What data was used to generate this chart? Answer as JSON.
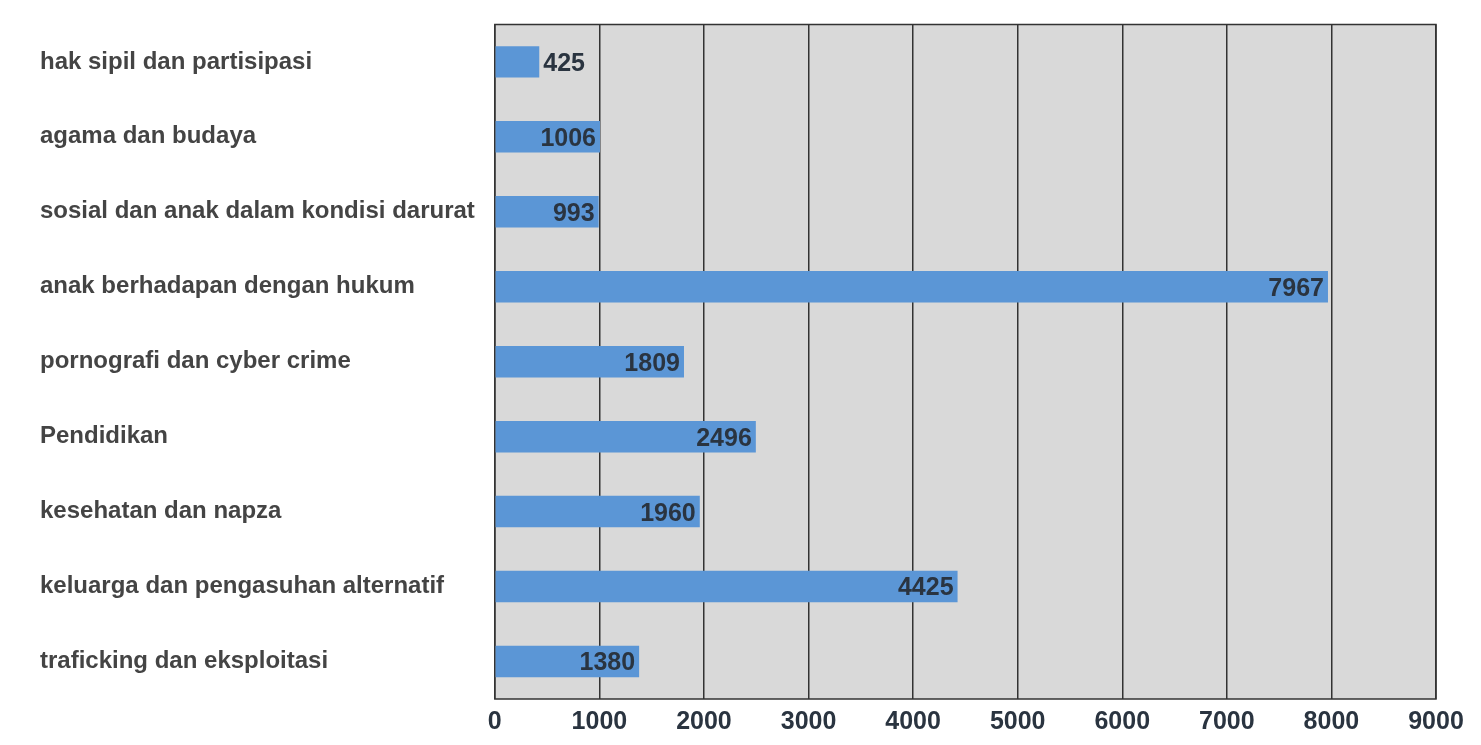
{
  "chart_data": {
    "type": "bar",
    "orientation": "horizontal",
    "categories": [
      "hak sipil dan partisipasi",
      "agama dan budaya",
      "sosial dan anak dalam kondisi darurat",
      "anak berhadapan dengan hukum",
      "pornografi dan cyber crime",
      "Pendidikan",
      "kesehatan dan napza",
      "keluarga dan pengasuhan alternatif",
      "traficking dan eksploitasi"
    ],
    "values": [
      425,
      1006,
      993,
      7967,
      1809,
      2496,
      1960,
      4425,
      1380
    ],
    "color": "#5b96d6",
    "xlim": [
      0,
      9000
    ],
    "xticks": [
      0,
      1000,
      2000,
      3000,
      4000,
      5000,
      6000,
      7000,
      8000,
      9000
    ],
    "grid": "x",
    "legend": false,
    "data_labels": true
  }
}
